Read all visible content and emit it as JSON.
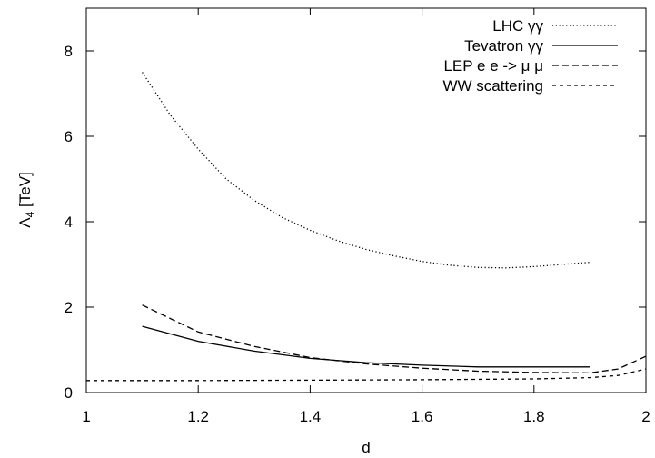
{
  "chart_data": {
    "type": "line",
    "xlabel": "d",
    "ylabel": "Λ",
    "ylabel_sub": "4",
    "ylabel_unit": " [TeV]",
    "xlim": [
      1,
      2
    ],
    "ylim": [
      0,
      9
    ],
    "xticks": [
      1,
      1.2,
      1.4,
      1.6,
      1.8,
      2
    ],
    "xtick_labels": [
      "1",
      "1.2",
      "1.4",
      "1.6",
      "1.8",
      "2"
    ],
    "yticks": [
      0,
      2,
      4,
      6,
      8
    ],
    "ytick_labels": [
      "0",
      "2",
      "4",
      "6",
      "8"
    ],
    "grid": false,
    "legend_position": "top-right",
    "series": [
      {
        "name": "LHC γγ",
        "dash": "dotted",
        "x": [
          1.1,
          1.15,
          1.2,
          1.25,
          1.3,
          1.35,
          1.4,
          1.45,
          1.5,
          1.55,
          1.6,
          1.65,
          1.7,
          1.75,
          1.8,
          1.85,
          1.9
        ],
        "y": [
          7.5,
          6.5,
          5.7,
          5.0,
          4.5,
          4.1,
          3.8,
          3.55,
          3.35,
          3.2,
          3.07,
          2.98,
          2.93,
          2.92,
          2.95,
          3.0,
          3.05
        ]
      },
      {
        "name": "Tevatron γγ",
        "dash": "solid",
        "x": [
          1.1,
          1.2,
          1.3,
          1.4,
          1.5,
          1.6,
          1.7,
          1.8,
          1.9
        ],
        "y": [
          1.55,
          1.2,
          0.97,
          0.8,
          0.7,
          0.64,
          0.6,
          0.6,
          0.6
        ]
      },
      {
        "name": "LEP e e -> μ μ",
        "dash": "dashed",
        "x": [
          1.1,
          1.2,
          1.3,
          1.4,
          1.5,
          1.6,
          1.7,
          1.8,
          1.9,
          1.95,
          2.0
        ],
        "y": [
          2.05,
          1.42,
          1.08,
          0.82,
          0.67,
          0.57,
          0.5,
          0.47,
          0.46,
          0.55,
          0.85
        ]
      },
      {
        "name": "WW scattering",
        "dash": "short-dashed",
        "x": [
          1.0,
          1.2,
          1.4,
          1.6,
          1.8,
          1.9,
          1.95,
          2.0
        ],
        "y": [
          0.28,
          0.28,
          0.29,
          0.3,
          0.32,
          0.35,
          0.4,
          0.55
        ]
      }
    ]
  }
}
